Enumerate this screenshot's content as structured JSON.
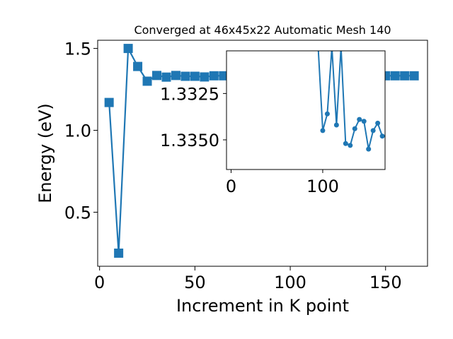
{
  "chart_data": [
    {
      "type": "line",
      "title": "Converged at 46x45x22 Automatic Mesh 140",
      "xlabel": "Increment in K point",
      "ylabel": "Energy (eV)",
      "xlim": [
        -1,
        172
      ],
      "ylim": [
        0.17,
        1.55
      ],
      "xticks": [
        0,
        50,
        100,
        150
      ],
      "yticks": [
        0.5,
        1.0,
        1.5
      ],
      "xtick_labels": [
        "0",
        "50",
        "100",
        "150"
      ],
      "ytick_labels": [
        "0.5",
        "1.0",
        "1.5"
      ],
      "grid": false,
      "color": "#1f77b4",
      "marker": "square",
      "series": [
        {
          "x": [
            5,
            10,
            15,
            20,
            25,
            30,
            35,
            40,
            45,
            50,
            55,
            60,
            65,
            70,
            75,
            80,
            85,
            90,
            95,
            100,
            105,
            110,
            115,
            120,
            125,
            130,
            135,
            140,
            145,
            150,
            155,
            160,
            165
          ],
          "values": [
            1.17,
            0.25,
            1.5,
            1.39,
            1.3,
            1.335,
            1.325,
            1.335,
            1.33,
            1.33,
            1.326,
            1.333,
            1.333,
            1.333,
            1.333,
            1.333,
            1.333,
            1.333,
            1.333,
            1.333,
            1.333,
            1.333,
            1.333,
            1.333,
            1.333,
            1.333,
            1.333,
            1.333,
            1.333,
            1.333,
            1.333,
            1.333,
            1.333
          ]
        }
      ]
    },
    {
      "type": "line",
      "placement": "inset",
      "xlim": [
        -5,
        168
      ],
      "ylim": [
        1.3366,
        1.3302
      ],
      "xticks": [
        0,
        100
      ],
      "yticks": [
        1.3325,
        1.335
      ],
      "xtick_labels": [
        "0",
        "100"
      ],
      "ytick_labels": [
        "1.3325",
        "1.3350"
      ],
      "inverted_y": true,
      "grid": false,
      "color": "#1f77b4",
      "marker": "circle",
      "series": [
        {
          "x": [
            95,
            100,
            105,
            110,
            115,
            120,
            125,
            130,
            135,
            140,
            145,
            150,
            155,
            160,
            165
          ],
          "values": [
            1.33,
            1.3345,
            1.3336,
            1.33,
            1.3342,
            1.33,
            1.3352,
            1.3353,
            1.3344,
            1.3339,
            1.334,
            1.3355,
            1.3345,
            1.3341,
            1.3348
          ]
        }
      ]
    }
  ]
}
